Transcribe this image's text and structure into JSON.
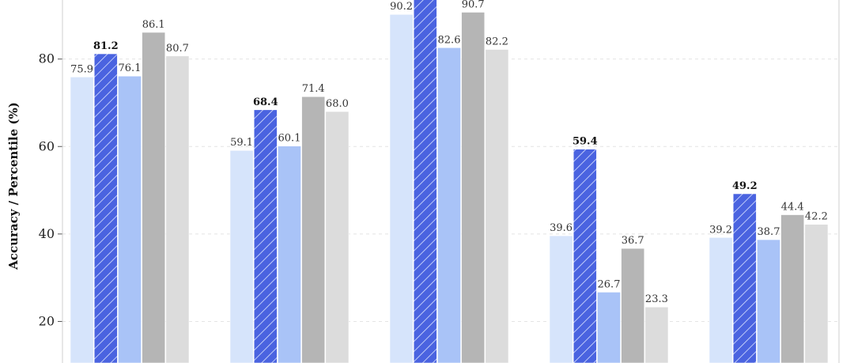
{
  "chart_data": {
    "type": "bar",
    "ylabel": "Accuracy / Percentile (%)",
    "ylim": [
      10.5,
      93.5
    ],
    "yticks": [
      20,
      40,
      60,
      80
    ],
    "grid": true,
    "groups": 5,
    "series": [
      {
        "values": [
          75.9,
          59.1,
          90.2,
          39.6,
          39.2
        ],
        "color": "#d6e4fb",
        "hatch": false,
        "bold_labels": false
      },
      {
        "values": [
          81.2,
          68.4,
          96.0,
          59.4,
          49.2
        ],
        "color": "#4a63e0",
        "hatch": true,
        "bold_labels": true
      },
      {
        "values": [
          76.1,
          60.1,
          82.6,
          26.7,
          38.7
        ],
        "color": "#a9c3f7",
        "hatch": false,
        "bold_labels": false
      },
      {
        "values": [
          86.1,
          71.4,
          90.7,
          36.7,
          44.4
        ],
        "color": "#b5b5b5",
        "hatch": false,
        "bold_labels": false
      },
      {
        "values": [
          80.7,
          68.0,
          82.2,
          23.3,
          42.2
        ],
        "color": "#dcdcdc",
        "hatch": false,
        "bold_labels": false
      }
    ],
    "value_labels": [
      [
        "75.9",
        "59.1",
        "90.2",
        "39.6",
        "39.2"
      ],
      [
        "81.2",
        "68.4",
        "",
        "59.4",
        "49.2"
      ],
      [
        "76.1",
        "60.1",
        "82.6",
        "26.7",
        "38.7"
      ],
      [
        "86.1",
        "71.4",
        "90.7",
        "36.7",
        "44.4"
      ],
      [
        "80.7",
        "68.0",
        "82.2",
        "23.3",
        "42.2"
      ]
    ]
  }
}
